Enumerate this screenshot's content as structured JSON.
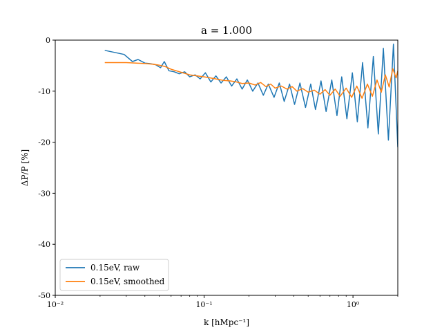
{
  "chart_data": {
    "type": "line",
    "title": "a = 1.000",
    "xlabel": "k [hMpc⁻¹]",
    "ylabel": "ΔP/P [%]",
    "xscale": "log",
    "xlim": [
      0.01,
      2.0
    ],
    "ylim": [
      -50,
      0
    ],
    "grid": false,
    "legend_position": "lower-left",
    "xticks": [
      {
        "value": 0.01,
        "label": "10⁻²"
      },
      {
        "value": 0.1,
        "label": "10⁻¹"
      },
      {
        "value": 1.0,
        "label": "10⁰"
      }
    ],
    "yticks": [
      {
        "value": 0,
        "label": "0"
      },
      {
        "value": -10,
        "label": "-10"
      },
      {
        "value": -20,
        "label": "-20"
      },
      {
        "value": -30,
        "label": "-30"
      },
      {
        "value": -40,
        "label": "-40"
      },
      {
        "value": -50,
        "label": "-50"
      }
    ],
    "series": [
      {
        "name": "0.15eV, raw",
        "color": "#1f77b4",
        "x": [
          0.0215,
          0.029,
          0.033,
          0.036,
          0.04,
          0.043,
          0.047,
          0.051,
          0.054,
          0.058,
          0.063,
          0.068,
          0.074,
          0.08,
          0.087,
          0.094,
          0.102,
          0.111,
          0.12,
          0.13,
          0.141,
          0.153,
          0.166,
          0.18,
          0.195,
          0.212,
          0.23,
          0.25,
          0.27,
          0.295,
          0.32,
          0.345,
          0.375,
          0.405,
          0.44,
          0.48,
          0.52,
          0.56,
          0.61,
          0.66,
          0.72,
          0.78,
          0.84,
          0.91,
          0.99,
          1.07,
          1.16,
          1.26,
          1.37,
          1.48,
          1.6,
          1.73,
          1.87,
          2.0
        ],
        "y": [
          -2.0,
          -2.8,
          -4.2,
          -3.8,
          -4.5,
          -4.6,
          -4.8,
          -5.4,
          -4.2,
          -6.0,
          -6.2,
          -6.6,
          -6.2,
          -7.2,
          -6.8,
          -7.6,
          -6.4,
          -8.2,
          -7.0,
          -8.4,
          -7.2,
          -9.0,
          -7.6,
          -9.6,
          -7.8,
          -10.0,
          -8.4,
          -10.8,
          -8.6,
          -11.2,
          -8.4,
          -12.0,
          -8.6,
          -12.6,
          -8.4,
          -13.2,
          -8.6,
          -13.6,
          -8.0,
          -14.0,
          -7.8,
          -14.8,
          -7.2,
          -15.4,
          -6.4,
          -16.0,
          -4.4,
          -17.2,
          -3.2,
          -18.4,
          -1.6,
          -19.6,
          -0.8,
          -21.0
        ]
      },
      {
        "name": "0.15eV, smoothed",
        "color": "#ff7f0e",
        "x": [
          0.0215,
          0.025,
          0.03,
          0.035,
          0.04,
          0.045,
          0.05,
          0.055,
          0.06,
          0.07,
          0.08,
          0.09,
          0.1,
          0.11,
          0.12,
          0.135,
          0.15,
          0.165,
          0.18,
          0.2,
          0.22,
          0.24,
          0.26,
          0.28,
          0.3,
          0.33,
          0.36,
          0.39,
          0.42,
          0.46,
          0.5,
          0.55,
          0.6,
          0.65,
          0.7,
          0.76,
          0.82,
          0.9,
          0.98,
          1.06,
          1.15,
          1.25,
          1.35,
          1.45,
          1.55,
          1.65,
          1.75,
          1.85,
          1.95,
          2.0
        ],
        "y": [
          -4.4,
          -4.4,
          -4.4,
          -4.5,
          -4.6,
          -4.7,
          -4.9,
          -5.2,
          -5.7,
          -6.3,
          -6.8,
          -7.0,
          -7.2,
          -7.4,
          -7.6,
          -7.9,
          -8.0,
          -8.2,
          -8.5,
          -8.4,
          -8.8,
          -8.3,
          -9.1,
          -8.6,
          -9.4,
          -9.0,
          -9.6,
          -9.1,
          -10.0,
          -9.5,
          -10.2,
          -9.8,
          -10.6,
          -9.7,
          -10.8,
          -9.6,
          -11.0,
          -9.4,
          -11.2,
          -9.0,
          -11.4,
          -8.6,
          -11.0,
          -7.8,
          -10.2,
          -6.8,
          -9.2,
          -5.6,
          -7.4,
          -6.0
        ]
      }
    ]
  }
}
